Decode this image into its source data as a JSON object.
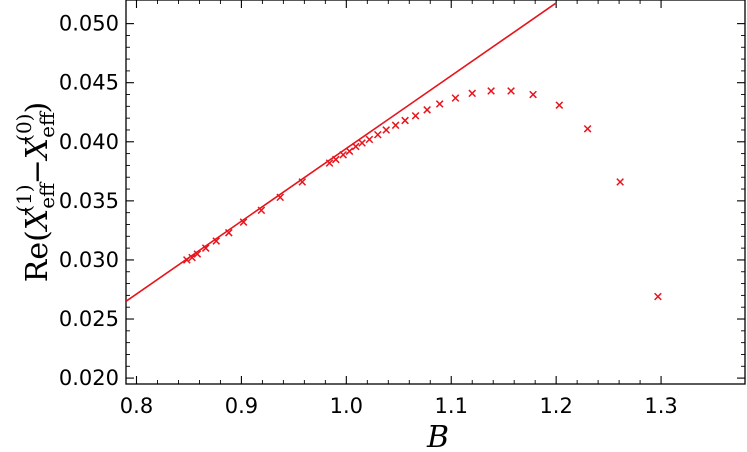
{
  "chart_data": {
    "type": "scatter",
    "title": "",
    "xlabel": "B",
    "ylabel": "Re(X_eff^(1) − X_eff^(0))",
    "ylabel_parts": {
      "prefix": "Re(",
      "var1": "X",
      "sub1": "eff",
      "sup1": "(1)",
      "minus": "−",
      "var2": "X",
      "sub2": "eff",
      "sup2": "(0)",
      "suffix": ")"
    },
    "xlim": [
      0.79,
      1.38
    ],
    "ylim": [
      0.0195,
      0.052
    ],
    "x_ticks": [
      0.8,
      0.9,
      1.0,
      1.1,
      1.2,
      1.3
    ],
    "x_tick_labels": [
      "0.8",
      "0.9",
      "1.0",
      "1.1",
      "1.2",
      "1.3"
    ],
    "y_ticks": [
      0.02,
      0.025,
      0.03,
      0.035,
      0.04,
      0.045,
      0.05
    ],
    "y_tick_labels": [
      "0.020",
      "0.025",
      "0.030",
      "0.035",
      "0.040",
      "0.045",
      "0.050"
    ],
    "grid": false,
    "color": "#e8141c",
    "series": [
      {
        "marker": "x",
        "points": [
          [
            0.848,
            0.03
          ],
          [
            0.853,
            0.0302
          ],
          [
            0.858,
            0.0305
          ],
          [
            0.866,
            0.031
          ],
          [
            0.876,
            0.0316
          ],
          [
            0.888,
            0.0323
          ],
          [
            0.902,
            0.0332
          ],
          [
            0.919,
            0.0342
          ],
          [
            0.937,
            0.0353
          ],
          [
            0.958,
            0.0366
          ],
          [
            0.984,
            0.0382
          ],
          [
            0.99,
            0.0385
          ],
          [
            0.997,
            0.0389
          ],
          [
            1.003,
            0.0392
          ],
          [
            1.009,
            0.0396
          ],
          [
            1.015,
            0.0399
          ],
          [
            1.022,
            0.0402
          ],
          [
            1.03,
            0.0406
          ],
          [
            1.038,
            0.041
          ],
          [
            1.047,
            0.0414
          ],
          [
            1.056,
            0.0418
          ],
          [
            1.066,
            0.0422
          ],
          [
            1.077,
            0.0427
          ],
          [
            1.089,
            0.0432
          ],
          [
            1.104,
            0.0437
          ],
          [
            1.12,
            0.0441
          ],
          [
            1.138,
            0.0443
          ],
          [
            1.157,
            0.0443
          ],
          [
            1.178,
            0.044
          ],
          [
            1.203,
            0.0431
          ],
          [
            1.23,
            0.0411
          ],
          [
            1.261,
            0.0366
          ],
          [
            1.297,
            0.0269
          ]
        ]
      },
      {
        "type": "line",
        "points": [
          [
            0.79,
            0.0265
          ],
          [
            1.2,
            0.05175
          ]
        ]
      }
    ]
  }
}
